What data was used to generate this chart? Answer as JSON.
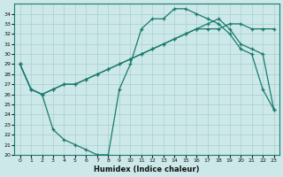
{
  "xlabel": "Humidex (Indice chaleur)",
  "xlim": [
    -0.5,
    23.5
  ],
  "ylim": [
    20,
    35
  ],
  "yticks": [
    20,
    21,
    22,
    23,
    24,
    25,
    26,
    27,
    28,
    29,
    30,
    31,
    32,
    33,
    34
  ],
  "xticks": [
    0,
    1,
    2,
    3,
    4,
    5,
    6,
    7,
    8,
    9,
    10,
    11,
    12,
    13,
    14,
    15,
    16,
    17,
    18,
    19,
    20,
    21,
    22,
    23
  ],
  "line_color": "#1a7a6e",
  "bg_color": "#cce8e8",
  "grid_color": "#aacfcf",
  "line1_x": [
    0,
    1,
    2,
    3,
    4,
    5,
    6,
    7,
    8,
    9,
    10,
    11,
    12,
    13,
    14,
    15,
    16,
    17,
    18,
    19,
    20,
    21,
    22,
    23
  ],
  "line1_y": [
    29.0,
    26.5,
    26.0,
    26.5,
    27.0,
    27.0,
    27.5,
    28.0,
    28.5,
    29.0,
    29.5,
    30.0,
    30.5,
    31.0,
    31.5,
    32.0,
    32.5,
    33.0,
    33.5,
    32.5,
    31.0,
    30.5,
    30.0,
    24.5
  ],
  "line2_x": [
    0,
    1,
    2,
    3,
    4,
    5,
    6,
    7,
    8,
    9,
    10,
    11,
    12,
    13,
    14,
    15,
    16,
    17,
    18,
    19,
    20,
    21,
    22,
    23
  ],
  "line2_y": [
    29.0,
    26.5,
    26.0,
    22.5,
    21.5,
    21.0,
    20.5,
    20.0,
    20.0,
    26.5,
    29.0,
    32.5,
    33.5,
    33.5,
    34.5,
    34.5,
    34.0,
    33.5,
    33.0,
    32.0,
    30.5,
    30.0,
    26.5,
    24.5
  ],
  "line3_x": [
    0,
    1,
    2,
    3,
    4,
    5,
    6,
    7,
    8,
    9,
    10,
    11,
    12,
    13,
    14,
    15,
    16,
    17,
    18,
    19,
    20,
    21,
    22,
    23
  ],
  "line3_y": [
    29.0,
    26.5,
    26.0,
    26.5,
    27.0,
    27.0,
    27.5,
    28.0,
    28.5,
    29.0,
    29.5,
    30.0,
    30.5,
    31.0,
    31.5,
    32.0,
    32.5,
    32.5,
    32.5,
    33.0,
    33.0,
    32.5,
    32.5,
    32.5
  ]
}
